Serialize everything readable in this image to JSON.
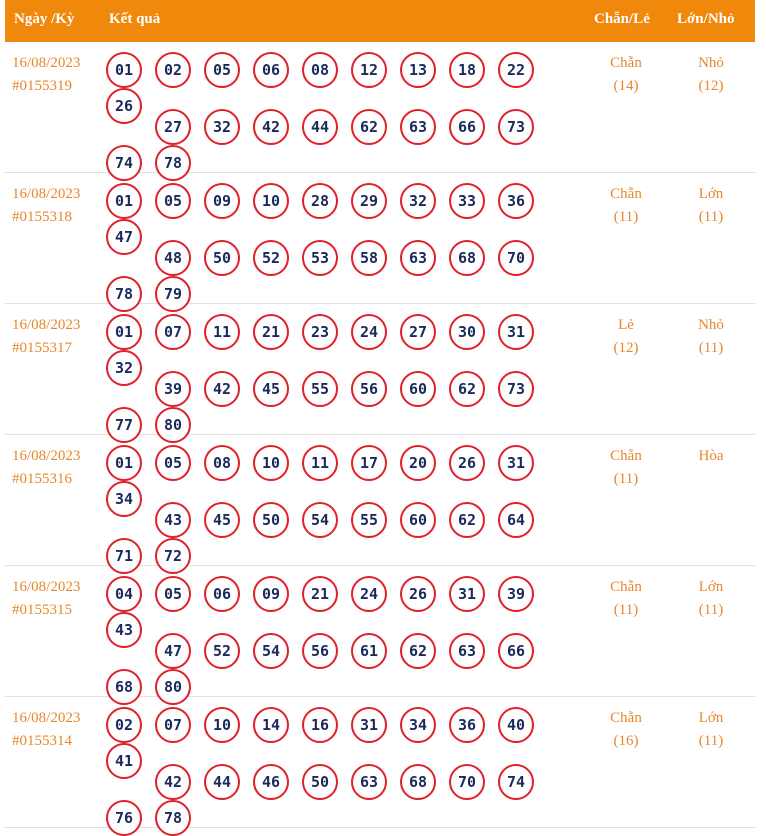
{
  "header": {
    "date_label": "Ngày /Kỳ",
    "result_label": "Kết quả",
    "even_odd_label": "Chẵn/Lẻ",
    "big_small_label": "Lớn/Nhỏ"
  },
  "rows": [
    {
      "date": "16/08/2023",
      "period": "#0155319",
      "numbers": [
        "01",
        "02",
        "05",
        "06",
        "08",
        "12",
        "13",
        "18",
        "22",
        "26",
        "27",
        "32",
        "42",
        "44",
        "62",
        "63",
        "66",
        "73",
        "74",
        "78"
      ],
      "even_odd": "Chẵn",
      "even_odd_count": "(14)",
      "big_small": "Nhỏ",
      "big_small_count": "(12)"
    },
    {
      "date": "16/08/2023",
      "period": "#0155318",
      "numbers": [
        "01",
        "05",
        "09",
        "10",
        "28",
        "29",
        "32",
        "33",
        "36",
        "47",
        "48",
        "50",
        "52",
        "53",
        "58",
        "63",
        "68",
        "70",
        "78",
        "79"
      ],
      "even_odd": "Chẵn",
      "even_odd_count": "(11)",
      "big_small": "Lớn",
      "big_small_count": "(11)"
    },
    {
      "date": "16/08/2023",
      "period": "#0155317",
      "numbers": [
        "01",
        "07",
        "11",
        "21",
        "23",
        "24",
        "27",
        "30",
        "31",
        "32",
        "39",
        "42",
        "45",
        "55",
        "56",
        "60",
        "62",
        "73",
        "77",
        "80"
      ],
      "even_odd": "Lẻ",
      "even_odd_count": "(12)",
      "big_small": "Nhỏ",
      "big_small_count": "(11)"
    },
    {
      "date": "16/08/2023",
      "period": "#0155316",
      "numbers": [
        "01",
        "05",
        "08",
        "10",
        "11",
        "17",
        "20",
        "26",
        "31",
        "34",
        "43",
        "45",
        "50",
        "54",
        "55",
        "60",
        "62",
        "64",
        "71",
        "72"
      ],
      "even_odd": "Chẵn",
      "even_odd_count": "(11)",
      "big_small": "Hòa",
      "big_small_count": ""
    },
    {
      "date": "16/08/2023",
      "period": "#0155315",
      "numbers": [
        "04",
        "05",
        "06",
        "09",
        "21",
        "24",
        "26",
        "31",
        "39",
        "43",
        "47",
        "52",
        "54",
        "56",
        "61",
        "62",
        "63",
        "66",
        "68",
        "80"
      ],
      "even_odd": "Chẵn",
      "even_odd_count": "(11)",
      "big_small": "Lớn",
      "big_small_count": "(11)"
    },
    {
      "date": "16/08/2023",
      "period": "#0155314",
      "numbers": [
        "02",
        "07",
        "10",
        "14",
        "16",
        "31",
        "34",
        "36",
        "40",
        "41",
        "42",
        "44",
        "46",
        "50",
        "63",
        "68",
        "70",
        "74",
        "76",
        "78"
      ],
      "even_odd": "Chẵn",
      "even_odd_count": "(16)",
      "big_small": "Lớn",
      "big_small_count": "(11)"
    }
  ],
  "colors": {
    "header_bg": "#f0880c",
    "text_orange": "#e8872a",
    "ball_border": "#e0202a",
    "ball_text": "#1a2a5a"
  }
}
